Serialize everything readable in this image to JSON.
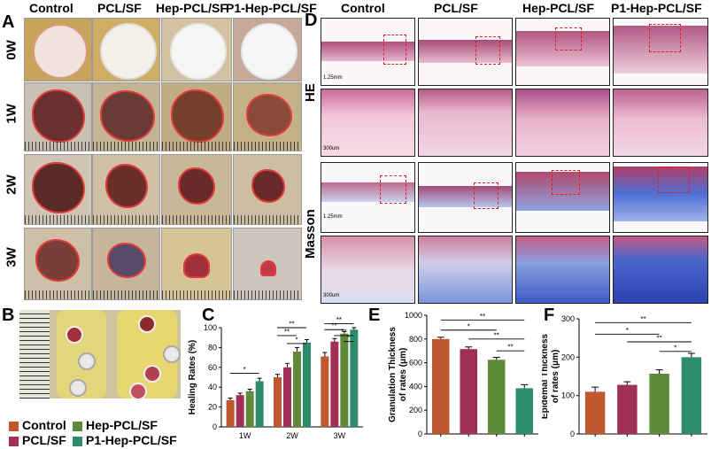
{
  "panels": {
    "A": "A",
    "B": "B",
    "C": "C",
    "D": "D",
    "E": "E",
    "F": "F"
  },
  "groups": [
    "Control",
    "PCL/SF",
    "Hep-PCL/SF",
    "P1-Hep-PCL/SF"
  ],
  "weeks": [
    "0W",
    "1W",
    "2W",
    "3W"
  ],
  "stains": {
    "he": "HE",
    "masson": "Masson"
  },
  "scale_bars": {
    "low": "1.25mm",
    "high": "300um"
  },
  "colors": {
    "control": "#c0572f",
    "pcl": "#a03058",
    "hep": "#5e8a3a",
    "p1": "#2e8b6e"
  },
  "chart_data": [
    {
      "id": "C",
      "type": "bar",
      "categories": [
        "1W",
        "2W",
        "3W"
      ],
      "series": [
        {
          "name": "Control",
          "values": [
            27,
            50,
            71
          ]
        },
        {
          "name": "PCL/SF",
          "values": [
            32,
            60,
            86
          ]
        },
        {
          "name": "Hep-PCL/SF",
          "values": [
            36,
            76,
            94
          ]
        },
        {
          "name": "P1-Hep-PCL/SF",
          "values": [
            46,
            85,
            98
          ]
        }
      ],
      "errors": [
        [
          2,
          3,
          4
        ],
        [
          2,
          4,
          3
        ],
        [
          2,
          4,
          2
        ],
        [
          3,
          3,
          2
        ]
      ],
      "ylabel": "Healing Rates (%)",
      "ylim": [
        0,
        100
      ],
      "yticks": [
        0,
        20,
        40,
        60,
        80,
        100
      ],
      "sig": [
        "*",
        "**",
        "**",
        "*",
        "**",
        "**",
        "**",
        "*"
      ]
    },
    {
      "id": "E",
      "type": "bar",
      "categories": [
        "Control",
        "PCL/SF",
        "Hep-PCL/SF",
        "P1-Hep-PCL/SF"
      ],
      "values": [
        800,
        715,
        625,
        385
      ],
      "errors": [
        15,
        18,
        20,
        30
      ],
      "ylabel": "Granulation Thickness of rates (μm)",
      "ylim": [
        0,
        1000
      ],
      "yticks": [
        0,
        200,
        400,
        600,
        800,
        1000
      ],
      "sig": [
        "**",
        "*",
        "**",
        "**"
      ]
    },
    {
      "id": "F",
      "type": "bar",
      "categories": [
        "Control",
        "PCL/SF",
        "Hep-PCL/SF",
        "P1-Hep-PCL/SF"
      ],
      "values": [
        110,
        128,
        157,
        200
      ],
      "errors": [
        12,
        8,
        10,
        10
      ],
      "ylabel": "Epidemal Thickness of rates (μm)",
      "ylim": [
        0,
        300
      ],
      "yticks": [
        0,
        100,
        200,
        300
      ],
      "sig": [
        "**",
        "*",
        "**",
        "*"
      ]
    }
  ]
}
